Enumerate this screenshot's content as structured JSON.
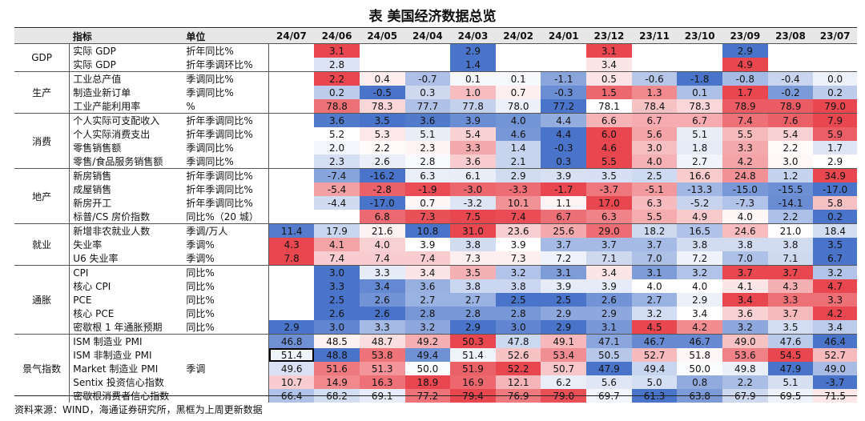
{
  "title": "表  美国经济数据总览",
  "header": {
    "indicator": "指标",
    "unit": "单位",
    "periods": [
      "24/07",
      "24/06",
      "24/05",
      "24/04",
      "24/03",
      "24/02",
      "24/01",
      "23/12",
      "23/11",
      "23/10",
      "23/09",
      "23/08",
      "23/07"
    ]
  },
  "groups": [
    {
      "category": "GDP",
      "rows": [
        {
          "name": "实际 GDP",
          "unit": "折年同比%",
          "values": [
            "",
            "3.1",
            "",
            "",
            "2.9",
            "",
            "",
            "3.1",
            "",
            "",
            "2.9",
            "",
            ""
          ]
        },
        {
          "name": "实际 GDP",
          "unit": "折年季调环比%",
          "values": [
            "",
            "2.8",
            "",
            "",
            "1.4",
            "",
            "",
            "3.4",
            "",
            "",
            "4.9",
            "",
            ""
          ]
        }
      ]
    },
    {
      "category": "生产",
      "rows": [
        {
          "name": "工业总产值",
          "unit": "季调同比%",
          "values": [
            "",
            "2.2",
            "0.4",
            "-0.7",
            "0.1",
            "0.1",
            "-1.1",
            "0.5",
            "-0.6",
            "-1.8",
            "-0.8",
            "-0.4",
            "0.0"
          ]
        },
        {
          "name": "制造业新订单",
          "unit": "季调同比%",
          "values": [
            "",
            "0.2",
            "-0.5",
            "0.3",
            "1.0",
            "0.7",
            "-0.3",
            "1.5",
            "1.3",
            "0.1",
            "1.7",
            "-0.2",
            "0.2"
          ]
        },
        {
          "name": "工业产能利用率",
          "unit": "%",
          "values": [
            "",
            "78.8",
            "78.3",
            "77.7",
            "77.8",
            "78.0",
            "77.2",
            "78.1",
            "78.4",
            "78.3",
            "78.9",
            "78.9",
            "79.0"
          ]
        }
      ]
    },
    {
      "category": "消费",
      "rows": [
        {
          "name": "个人实际可支配收入",
          "unit": "折年季调同比%",
          "values": [
            "",
            "3.6",
            "3.5",
            "3.6",
            "3.9",
            "4.0",
            "4.4",
            "6.6",
            "6.7",
            "6.7",
            "7.4",
            "7.6",
            "7.9"
          ]
        },
        {
          "name": "个人实际消费支出",
          "unit": "折年季调同比%",
          "values": [
            "",
            "5.2",
            "5.3",
            "5.1",
            "5.4",
            "4.6",
            "4.4",
            "6.0",
            "5.6",
            "5.1",
            "5.5",
            "5.4",
            "5.9"
          ]
        },
        {
          "name": "零售销售额",
          "unit": "季调同比%",
          "values": [
            "",
            "2.0",
            "2.2",
            "2.3",
            "3.3",
            "1.4",
            "-0.3",
            "4.6",
            "3.0",
            "1.8",
            "3.3",
            "2.2",
            "1.7"
          ]
        },
        {
          "name": "零售/食品服务销售额",
          "unit": "季调同比%",
          "values": [
            "",
            "2.3",
            "2.6",
            "2.8",
            "3.6",
            "2.1",
            "0.3",
            "5.5",
            "4.0",
            "2.7",
            "4.2",
            "3.0",
            "2.9"
          ]
        }
      ]
    },
    {
      "category": "地产",
      "rows": [
        {
          "name": "新房销售",
          "unit": "折年季调同比%",
          "values": [
            "",
            "-7.4",
            "-16.2",
            "6.3",
            "6.1",
            "2.9",
            "3.9",
            "3.5",
            "2.5",
            "16.6",
            "24.8",
            "1.2",
            "34.9"
          ]
        },
        {
          "name": "成屋销售",
          "unit": "折年季调同比%",
          "values": [
            "",
            "-5.4",
            "-2.8",
            "-1.9",
            "-3.0",
            "-3.3",
            "-1.7",
            "-3.7",
            "-5.1",
            "-13.3",
            "-15.0",
            "-15.5",
            "-17.0"
          ]
        },
        {
          "name": "新房开工",
          "unit": "折年季调同比%",
          "values": [
            "",
            "-4.4",
            "-17.0",
            "0.7",
            "-3.2",
            "10.1",
            "1.1",
            "17.0",
            "6.3",
            "-5.2",
            "-7.3",
            "-14.1",
            "5.8"
          ]
        },
        {
          "name": "标普/CS 房价指数",
          "unit": "同比%（20 城）",
          "values": [
            "",
            "",
            "6.8",
            "7.3",
            "7.5",
            "7.4",
            "6.7",
            "6.3",
            "5.5",
            "4.9",
            "4.0",
            "2.2",
            "0.2"
          ]
        }
      ]
    },
    {
      "category": "就业",
      "rows": [
        {
          "name": "新增非农就业人数",
          "unit": "季调/万人",
          "values": [
            "11.4",
            "17.9",
            "21.6",
            "10.8",
            "31.0",
            "23.6",
            "25.6",
            "29.0",
            "18.2",
            "16.5",
            "24.6",
            "21.0",
            "18.4"
          ]
        },
        {
          "name": "失业率",
          "unit": "季调%",
          "values": [
            "4.3",
            "4.1",
            "4.0",
            "3.9",
            "3.8",
            "3.9",
            "3.7",
            "3.7",
            "3.7",
            "3.8",
            "3.8",
            "3.8",
            "3.5"
          ]
        },
        {
          "name": "U6 失业率",
          "unit": "季调%",
          "values": [
            "7.8",
            "7.4",
            "7.4",
            "7.4",
            "7.3",
            "7.3",
            "7.2",
            "7.1",
            "7.0",
            "7.2",
            "7.0",
            "7.1",
            "6.7"
          ]
        }
      ]
    },
    {
      "category": "通胀",
      "rows": [
        {
          "name": "CPI",
          "unit": "同比%",
          "values": [
            "",
            "3.0",
            "3.3",
            "3.4",
            "3.5",
            "3.2",
            "3.1",
            "3.4",
            "3.1",
            "3.2",
            "3.7",
            "3.7",
            "3.2"
          ]
        },
        {
          "name": "核心 CPI",
          "unit": "同比%",
          "values": [
            "",
            "3.3",
            "3.4",
            "3.6",
            "3.8",
            "3.8",
            "3.9",
            "3.9",
            "4.0",
            "4.0",
            "4.1",
            "4.3",
            "4.7"
          ]
        },
        {
          "name": "PCE",
          "unit": "同比%",
          "values": [
            "",
            "2.5",
            "2.6",
            "2.7",
            "2.7",
            "2.5",
            "2.5",
            "2.6",
            "2.7",
            "2.9",
            "3.4",
            "3.3",
            "3.3"
          ]
        },
        {
          "name": "核心 PCE",
          "unit": "同比%",
          "values": [
            "",
            "2.6",
            "2.6",
            "2.8",
            "2.8",
            "2.8",
            "2.9",
            "2.9",
            "3.2",
            "3.4",
            "3.6",
            "3.7",
            "4.2"
          ]
        },
        {
          "name": "密歇根 1 年通胀预期",
          "unit": "同比%",
          "values": [
            "2.9",
            "3.0",
            "3.3",
            "3.2",
            "2.9",
            "3.0",
            "2.9",
            "3.1",
            "4.5",
            "4.2",
            "3.2",
            "3.5",
            "3.4"
          ]
        }
      ]
    },
    {
      "category": "景气指数",
      "unit": "季调",
      "rows": [
        {
          "name": "ISM 制造业 PMI",
          "values": [
            "46.8",
            "48.5",
            "48.7",
            "49.2",
            "50.3",
            "47.8",
            "49.1",
            "47.1",
            "46.7",
            "46.7",
            "49.0",
            "47.6",
            "46.4"
          ]
        },
        {
          "name": "ISM 非制造业 PMI",
          "values": [
            "51.4",
            "48.8",
            "53.8",
            "49.4",
            "51.4",
            "52.6",
            "53.4",
            "50.5",
            "52.7",
            "51.8",
            "53.6",
            "54.5",
            "52.7"
          ]
        },
        {
          "name": "Market 制造业 PMI",
          "values": [
            "49.6",
            "51.6",
            "51.3",
            "50.0",
            "51.9",
            "52.2",
            "50.7",
            "47.9",
            "49.4",
            "50.0",
            "49.8",
            "47.9",
            "49.0"
          ]
        },
        {
          "name": "Sentix 投资信心指数",
          "values": [
            "10.7",
            "14.9",
            "16.3",
            "18.9",
            "16.9",
            "12.1",
            "6.2",
            "5.6",
            "5.0",
            "0.8",
            "2.2",
            "5.1",
            "-3.7"
          ]
        },
        {
          "name": "密歇根消费者信心指数",
          "values": [
            "66.4",
            "68.2",
            "69.1",
            "77.2",
            "79.4",
            "76.9",
            "79.0",
            "69.7",
            "61.3",
            "63.8",
            "67.9",
            "69.5",
            "71.5"
          ]
        }
      ]
    }
  ],
  "boxed_cell_note": "ISM 非制造业 PMI 24/07",
  "colors": {
    "heat_blue": "#4a74c9",
    "heat_red": "#e8474f",
    "heat_neutral": "#ffffff",
    "header_bg": "#e7e7e7"
  },
  "footer": "资料来源：WIND，海通证券研究所，黑框为上周更新数据"
}
